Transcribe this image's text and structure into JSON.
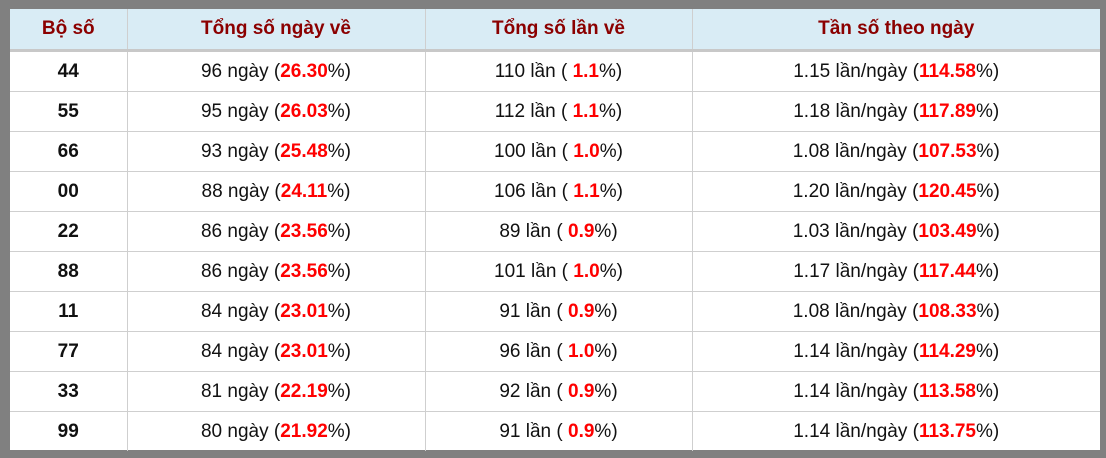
{
  "headers": [
    "Bộ số",
    "Tổng số ngày về",
    "Tổng số lần về",
    "Tần số theo ngày"
  ],
  "accent_color": "#ff0000",
  "rows": [
    {
      "bo_so": "44",
      "ngay": "96 ngày (",
      "ngay_pct": "26.30",
      "lan": "110 lần ( ",
      "lan_pct": "1.1",
      "tan": "1.15 lần/ngày (",
      "tan_pct": "114.58"
    },
    {
      "bo_so": "55",
      "ngay": "95 ngày (",
      "ngay_pct": "26.03",
      "lan": "112 lần ( ",
      "lan_pct": "1.1",
      "tan": "1.18 lần/ngày (",
      "tan_pct": "117.89"
    },
    {
      "bo_so": "66",
      "ngay": "93 ngày (",
      "ngay_pct": "25.48",
      "lan": "100 lần ( ",
      "lan_pct": "1.0",
      "tan": "1.08 lần/ngày (",
      "tan_pct": "107.53"
    },
    {
      "bo_so": "00",
      "ngay": "88 ngày (",
      "ngay_pct": "24.11",
      "lan": "106 lần ( ",
      "lan_pct": "1.1",
      "tan": "1.20 lần/ngày (",
      "tan_pct": "120.45"
    },
    {
      "bo_so": "22",
      "ngay": "86 ngày (",
      "ngay_pct": "23.56",
      "lan": "89 lần ( ",
      "lan_pct": "0.9",
      "tan": "1.03 lần/ngày (",
      "tan_pct": "103.49"
    },
    {
      "bo_so": "88",
      "ngay": "86 ngày (",
      "ngay_pct": "23.56",
      "lan": "101 lần ( ",
      "lan_pct": "1.0",
      "tan": "1.17 lần/ngày (",
      "tan_pct": "117.44"
    },
    {
      "bo_so": "11",
      "ngay": "84 ngày (",
      "ngay_pct": "23.01",
      "lan": "91 lần ( ",
      "lan_pct": "0.9",
      "tan": "1.08 lần/ngày (",
      "tan_pct": "108.33"
    },
    {
      "bo_so": "77",
      "ngay": "84 ngày (",
      "ngay_pct": "23.01",
      "lan": "96 lần ( ",
      "lan_pct": "1.0",
      "tan": "1.14 lần/ngày (",
      "tan_pct": "114.29"
    },
    {
      "bo_so": "33",
      "ngay": "81 ngày (",
      "ngay_pct": "22.19",
      "lan": "92 lần ( ",
      "lan_pct": "0.9",
      "tan": "1.14 lần/ngày (",
      "tan_pct": "113.58"
    },
    {
      "bo_so": "99",
      "ngay": "80 ngày (",
      "ngay_pct": "21.92",
      "lan": "91 lần ( ",
      "lan_pct": "0.9",
      "tan": "1.14 lần/ngày (",
      "tan_pct": "113.75"
    }
  ],
  "pct_suffix": "%)"
}
